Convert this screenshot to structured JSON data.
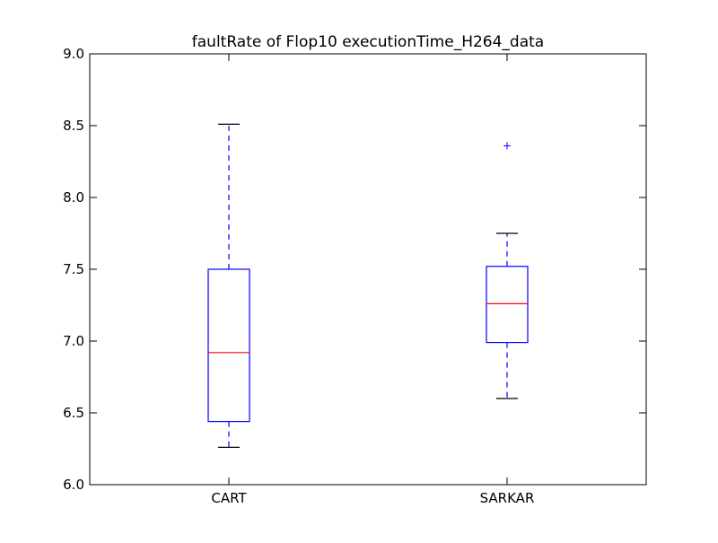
{
  "chart_data": {
    "type": "boxplot",
    "title": "faultRate of Flop10 executionTime_H264_data",
    "xlabel": "",
    "ylabel": "",
    "ylim": [
      6.0,
      9.0
    ],
    "yticks": [
      6.0,
      6.5,
      7.0,
      7.5,
      8.0,
      8.5,
      9.0
    ],
    "ytick_labels": [
      "6.0",
      "6.5",
      "7.0",
      "7.5",
      "8.0",
      "8.5",
      "9.0"
    ],
    "grid": false,
    "categories": [
      "CART",
      "SARKAR"
    ],
    "boxes": [
      {
        "category": "CART",
        "whisker_low": 6.26,
        "q1": 6.44,
        "median": 6.92,
        "q3": 7.5,
        "whisker_high": 8.51,
        "outliers": []
      },
      {
        "category": "SARKAR",
        "whisker_low": 6.6,
        "q1": 6.99,
        "median": 7.26,
        "q3": 7.52,
        "whisker_high": 7.75,
        "outliers": [
          8.36
        ]
      }
    ],
    "colors": {
      "box": "#0000ff",
      "median": "#ff0000",
      "whisker": "#0000ff",
      "cap": "#000000",
      "outlier": "#0000ff",
      "axes": "#000000"
    }
  }
}
